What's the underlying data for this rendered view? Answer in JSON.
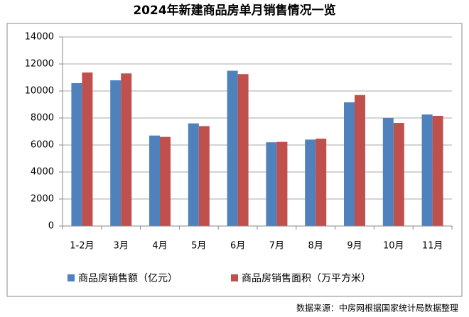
{
  "chart_data": {
    "type": "bar",
    "title": "2024年新建商品房单月销售情况一览",
    "categories": [
      "1-2月",
      "3月",
      "4月",
      "5月",
      "6月",
      "7月",
      "8月",
      "9月",
      "10月",
      "11月"
    ],
    "series": [
      {
        "name": "商品房销售额（亿元）",
        "color": "#4f81bd",
        "values": [
          10580,
          10790,
          6700,
          7600,
          11500,
          6200,
          6400,
          9160,
          8000,
          8260
        ]
      },
      {
        "name": "商品房销售面积（万平方米）",
        "color": "#c0504d",
        "values": [
          11370,
          11300,
          6600,
          7400,
          11250,
          6230,
          6470,
          9700,
          7630,
          8160
        ]
      }
    ],
    "ylim": [
      0,
      14000
    ],
    "yticks": [
      0,
      2000,
      4000,
      6000,
      8000,
      10000,
      12000,
      14000
    ],
    "grid": true,
    "legend": "bottom",
    "source": "数据来源：中房网根据国家统计局数据整理"
  }
}
